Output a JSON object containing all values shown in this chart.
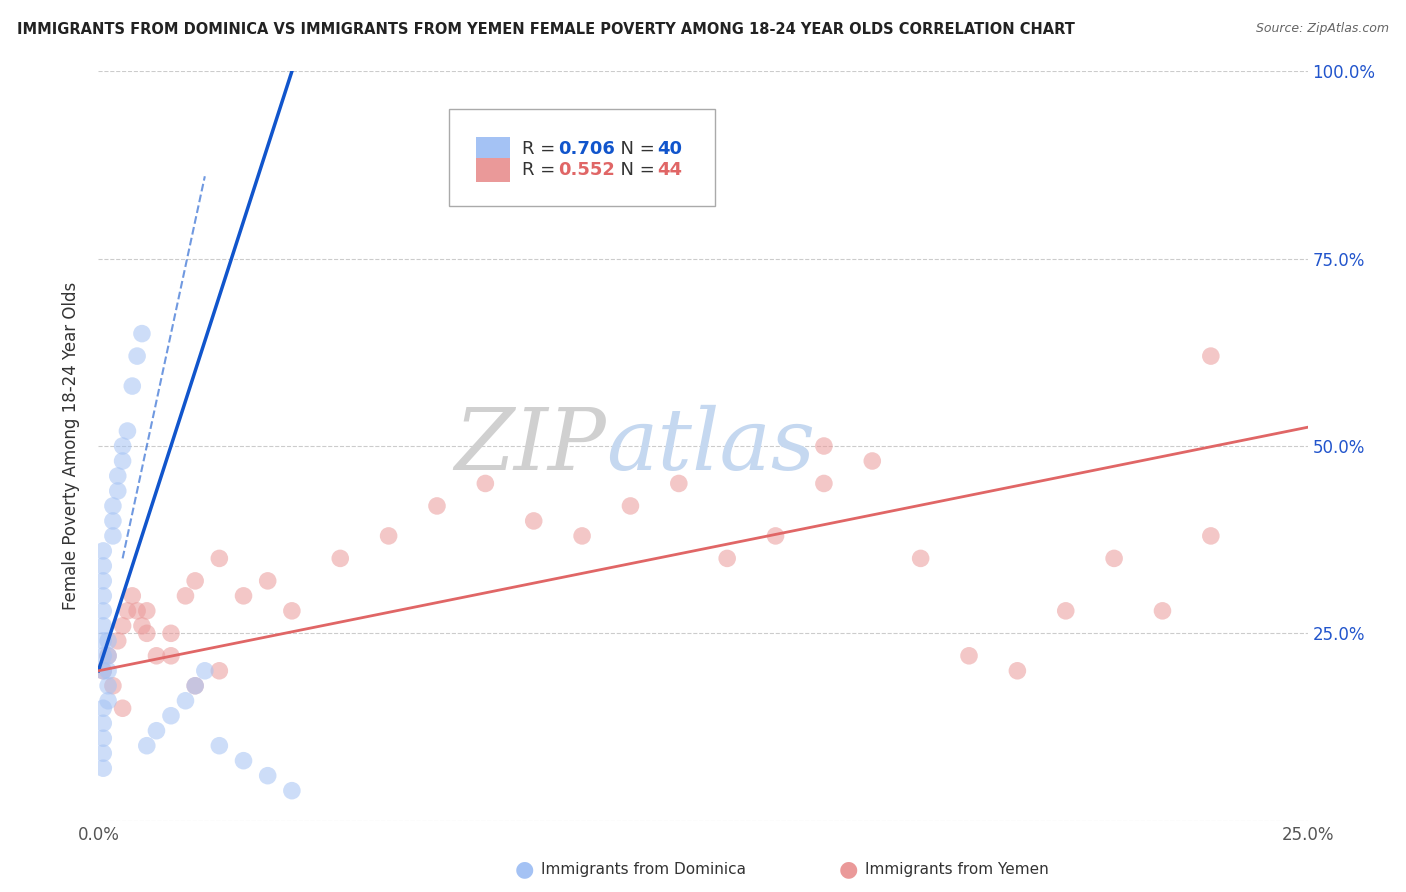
{
  "title": "IMMIGRANTS FROM DOMINICA VS IMMIGRANTS FROM YEMEN FEMALE POVERTY AMONG 18-24 YEAR OLDS CORRELATION CHART",
  "source": "Source: ZipAtlas.com",
  "ylabel": "Female Poverty Among 18-24 Year Olds",
  "xlim": [
    0.0,
    0.25
  ],
  "ylim": [
    0.0,
    1.0
  ],
  "dominica_R": 0.706,
  "dominica_N": 40,
  "yemen_R": 0.552,
  "yemen_N": 44,
  "dominica_color": "#a4c2f4",
  "yemen_color": "#ea9999",
  "dominica_line_color": "#1155cc",
  "yemen_line_color": "#e06666",
  "watermark_zip": "ZIP",
  "watermark_atlas": "atlas",
  "dominica_x": [
    0.001,
    0.001,
    0.001,
    0.001,
    0.001,
    0.001,
    0.001,
    0.001,
    0.001,
    0.001,
    0.001,
    0.001,
    0.001,
    0.001,
    0.002,
    0.002,
    0.002,
    0.002,
    0.002,
    0.003,
    0.003,
    0.003,
    0.004,
    0.004,
    0.005,
    0.005,
    0.006,
    0.007,
    0.008,
    0.009,
    0.01,
    0.012,
    0.015,
    0.018,
    0.02,
    0.022,
    0.025,
    0.03,
    0.035,
    0.04
  ],
  "dominica_y": [
    0.2,
    0.22,
    0.24,
    0.26,
    0.28,
    0.3,
    0.32,
    0.34,
    0.36,
    0.15,
    0.13,
    0.11,
    0.09,
    0.07,
    0.18,
    0.2,
    0.22,
    0.24,
    0.16,
    0.38,
    0.4,
    0.42,
    0.44,
    0.46,
    0.48,
    0.5,
    0.52,
    0.58,
    0.62,
    0.65,
    0.1,
    0.12,
    0.14,
    0.16,
    0.18,
    0.2,
    0.1,
    0.08,
    0.06,
    0.04
  ],
  "yemen_x": [
    0.001,
    0.002,
    0.003,
    0.004,
    0.005,
    0.006,
    0.007,
    0.008,
    0.009,
    0.01,
    0.012,
    0.015,
    0.018,
    0.02,
    0.025,
    0.03,
    0.035,
    0.04,
    0.05,
    0.06,
    0.07,
    0.08,
    0.09,
    0.1,
    0.11,
    0.12,
    0.13,
    0.14,
    0.15,
    0.16,
    0.17,
    0.18,
    0.19,
    0.2,
    0.21,
    0.22,
    0.23,
    0.005,
    0.01,
    0.015,
    0.02,
    0.025,
    0.15,
    0.23
  ],
  "yemen_y": [
    0.2,
    0.22,
    0.18,
    0.24,
    0.26,
    0.28,
    0.3,
    0.28,
    0.26,
    0.28,
    0.22,
    0.25,
    0.3,
    0.32,
    0.35,
    0.3,
    0.32,
    0.28,
    0.35,
    0.38,
    0.42,
    0.45,
    0.4,
    0.38,
    0.42,
    0.45,
    0.35,
    0.38,
    0.45,
    0.48,
    0.35,
    0.22,
    0.2,
    0.28,
    0.35,
    0.28,
    0.38,
    0.15,
    0.25,
    0.22,
    0.18,
    0.2,
    0.5,
    0.62
  ]
}
